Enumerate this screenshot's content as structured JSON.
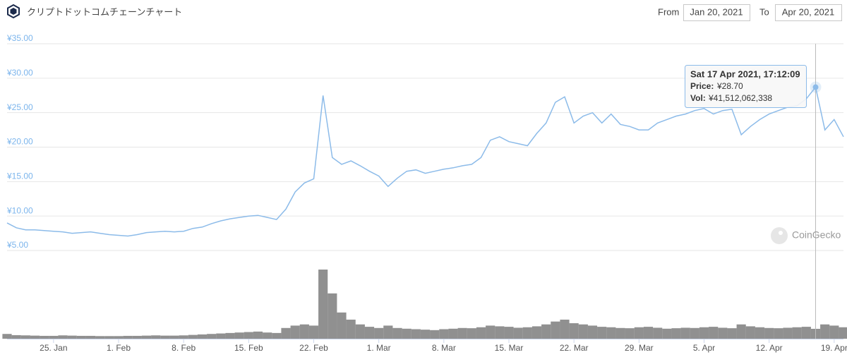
{
  "header": {
    "title": "クリプトドットコムチェーンチャート",
    "from_label": "From",
    "from_value": "Jan 20, 2021",
    "to_label": "To",
    "to_value": "Apr 20, 2021"
  },
  "watermark": "CoinGecko",
  "tooltip": {
    "title": "Sat 17 Apr 2021, 17:12:09",
    "price_label": "Price:",
    "price": "¥28.70",
    "vol_label": "Vol:",
    "vol": "¥41,512,062,338"
  },
  "chart_data": [
    {
      "type": "line",
      "color": "#8cbbe9",
      "grid": true,
      "x": [
        "2021-01-20",
        "2021-01-21",
        "2021-01-22",
        "2021-01-23",
        "2021-01-24",
        "2021-01-25",
        "2021-01-26",
        "2021-01-27",
        "2021-01-28",
        "2021-01-29",
        "2021-01-30",
        "2021-01-31",
        "2021-02-01",
        "2021-02-02",
        "2021-02-03",
        "2021-02-04",
        "2021-02-05",
        "2021-02-06",
        "2021-02-07",
        "2021-02-08",
        "2021-02-09",
        "2021-02-10",
        "2021-02-11",
        "2021-02-12",
        "2021-02-13",
        "2021-02-14",
        "2021-02-15",
        "2021-02-16",
        "2021-02-17",
        "2021-02-18",
        "2021-02-19",
        "2021-02-20",
        "2021-02-21",
        "2021-02-22",
        "2021-02-23",
        "2021-02-24",
        "2021-02-25",
        "2021-02-26",
        "2021-02-27",
        "2021-02-28",
        "2021-03-01",
        "2021-03-02",
        "2021-03-03",
        "2021-03-04",
        "2021-03-05",
        "2021-03-06",
        "2021-03-07",
        "2021-03-08",
        "2021-03-09",
        "2021-03-10",
        "2021-03-11",
        "2021-03-12",
        "2021-03-13",
        "2021-03-14",
        "2021-03-15",
        "2021-03-16",
        "2021-03-17",
        "2021-03-18",
        "2021-03-19",
        "2021-03-20",
        "2021-03-21",
        "2021-03-22",
        "2021-03-23",
        "2021-03-24",
        "2021-03-25",
        "2021-03-26",
        "2021-03-27",
        "2021-03-28",
        "2021-03-29",
        "2021-03-30",
        "2021-03-31",
        "2021-04-01",
        "2021-04-02",
        "2021-04-03",
        "2021-04-04",
        "2021-04-05",
        "2021-04-06",
        "2021-04-07",
        "2021-04-08",
        "2021-04-09",
        "2021-04-10",
        "2021-04-11",
        "2021-04-12",
        "2021-04-13",
        "2021-04-14",
        "2021-04-15",
        "2021-04-16",
        "2021-04-17",
        "2021-04-18",
        "2021-04-19",
        "2021-04-20"
      ],
      "values": [
        9.0,
        8.3,
        8.0,
        8.0,
        7.9,
        7.8,
        7.7,
        7.5,
        7.6,
        7.7,
        7.5,
        7.3,
        7.2,
        7.1,
        7.3,
        7.6,
        7.7,
        7.8,
        7.7,
        7.8,
        8.2,
        8.4,
        8.9,
        9.3,
        9.6,
        9.8,
        10.0,
        10.1,
        9.8,
        9.5,
        11.0,
        13.5,
        14.8,
        15.4,
        27.5,
        18.5,
        17.5,
        18.0,
        17.3,
        16.5,
        15.8,
        14.3,
        15.5,
        16.5,
        16.7,
        16.2,
        16.5,
        16.8,
        17.0,
        17.3,
        17.5,
        18.5,
        21.0,
        21.5,
        20.8,
        20.5,
        20.2,
        22.0,
        23.5,
        26.5,
        27.3,
        23.5,
        24.5,
        25.0,
        23.5,
        24.8,
        23.3,
        23.0,
        22.5,
        22.5,
        23.5,
        24.0,
        24.5,
        24.8,
        25.3,
        25.6,
        24.8,
        25.3,
        25.5,
        21.8,
        23.0,
        24.0,
        24.8,
        25.3,
        25.8,
        26.0,
        27.0,
        28.7,
        22.5,
        24.0,
        21.5
      ],
      "xlim": [
        "2021-01-20",
        "2021-04-20"
      ],
      "xticks": [
        {
          "value": "2021-01-25",
          "label": "25. Jan"
        },
        {
          "value": "2021-02-01",
          "label": "1. Feb"
        },
        {
          "value": "2021-02-08",
          "label": "8. Feb"
        },
        {
          "value": "2021-02-15",
          "label": "15. Feb"
        },
        {
          "value": "2021-02-22",
          "label": "22. Feb"
        },
        {
          "value": "2021-03-01",
          "label": "1. Mar"
        },
        {
          "value": "2021-03-08",
          "label": "8. Mar"
        },
        {
          "value": "2021-03-15",
          "label": "15. Mar"
        },
        {
          "value": "2021-03-22",
          "label": "22. Mar"
        },
        {
          "value": "2021-03-29",
          "label": "29. Mar"
        },
        {
          "value": "2021-04-05",
          "label": "5. Apr"
        },
        {
          "value": "2021-04-12",
          "label": "12. Apr"
        },
        {
          "value": "2021-04-19",
          "label": "19. Apr"
        }
      ],
      "ylim": [
        5,
        35
      ],
      "yticks": [
        {
          "value": 5,
          "label": "¥5.00"
        },
        {
          "value": 10,
          "label": "¥10.00"
        },
        {
          "value": 15,
          "label": "¥15.00"
        },
        {
          "value": 20,
          "label": "¥20.00"
        },
        {
          "value": 25,
          "label": "¥25.00"
        },
        {
          "value": 30,
          "label": "¥30.00"
        },
        {
          "value": 35,
          "label": "¥35.00"
        }
      ]
    },
    {
      "type": "bar",
      "color": "#6b6b6b",
      "values": [
        20000000000,
        15000000000,
        14000000000,
        13000000000,
        12000000000,
        12000000000,
        14000000000,
        13000000000,
        12000000000,
        12000000000,
        11000000000,
        11000000000,
        11000000000,
        12000000000,
        12000000000,
        13000000000,
        14000000000,
        13000000000,
        13000000000,
        14000000000,
        16000000000,
        18000000000,
        20000000000,
        22000000000,
        24000000000,
        26000000000,
        28000000000,
        30000000000,
        26000000000,
        24000000000,
        45000000000,
        55000000000,
        60000000000,
        55000000000,
        290000000000,
        190000000000,
        110000000000,
        80000000000,
        60000000000,
        50000000000,
        45000000000,
        55000000000,
        45000000000,
        42000000000,
        40000000000,
        38000000000,
        36000000000,
        40000000000,
        42000000000,
        45000000000,
        44000000000,
        48000000000,
        55000000000,
        52000000000,
        50000000000,
        46000000000,
        48000000000,
        52000000000,
        60000000000,
        72000000000,
        80000000000,
        65000000000,
        60000000000,
        55000000000,
        50000000000,
        48000000000,
        45000000000,
        44000000000,
        48000000000,
        50000000000,
        46000000000,
        42000000000,
        44000000000,
        46000000000,
        45000000000,
        48000000000,
        50000000000,
        46000000000,
        44000000000,
        60000000000,
        52000000000,
        48000000000,
        45000000000,
        44000000000,
        46000000000,
        48000000000,
        50000000000,
        41512062338,
        60000000000,
        55000000000,
        48000000000
      ]
    }
  ]
}
